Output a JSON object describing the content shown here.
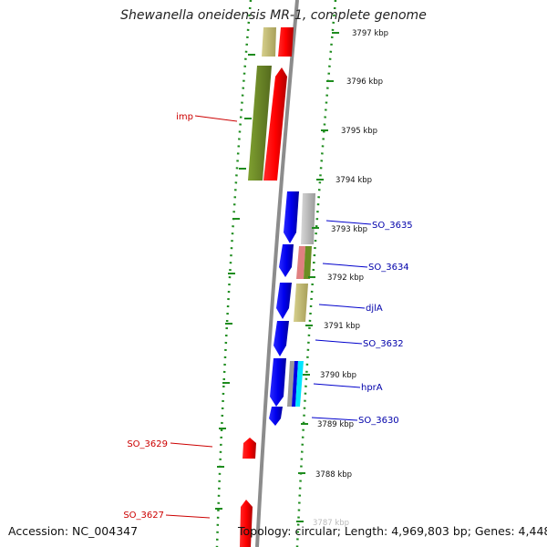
{
  "title": "Shewanella oneidensis MR-1, complete genome",
  "accession": "Accession: NC_004347",
  "topology": "Topology: circular; Length: 4,969,803 bp; Genes: 4,448",
  "scale_labels": [
    "3797 kbp",
    "3796 kbp",
    "3795 kbp",
    "3794 kbp",
    "3793 kbp",
    "3792 kbp",
    "3791 kbp",
    "3790 kbp",
    "3789 kbp",
    "3788 kbp",
    "3787 kbp"
  ],
  "gene_labels": [
    {
      "name": "imp",
      "strand": "reverse",
      "color": "#cc0000"
    },
    {
      "name": "SO_3635",
      "strand": "forward",
      "color": "#0000aa"
    },
    {
      "name": "SO_3634",
      "strand": "forward",
      "color": "#0000aa"
    },
    {
      "name": "djlA",
      "strand": "forward",
      "color": "#0000aa"
    },
    {
      "name": "SO_3632",
      "strand": "forward",
      "color": "#0000aa"
    },
    {
      "name": "hprA",
      "strand": "forward",
      "color": "#0000aa"
    },
    {
      "name": "SO_3630",
      "strand": "forward",
      "color": "#0000aa"
    },
    {
      "name": "SO_3629",
      "strand": "reverse",
      "color": "#cc0000"
    },
    {
      "name": "SO_3627",
      "strand": "reverse",
      "color": "#cc0000"
    }
  ],
  "colors": {
    "forward_gene": "#0000e6",
    "reverse_gene": "#ee0000",
    "backbone": "#8c8c8c",
    "gc_skew_dots": "#1e8c1e",
    "cog_olive": "#6b8e23",
    "cog_khaki": "#bdb76b",
    "cog_grey": "#b0b0b0",
    "cog_pink": "#e08080",
    "cog_cyan": "#00e5ff"
  }
}
